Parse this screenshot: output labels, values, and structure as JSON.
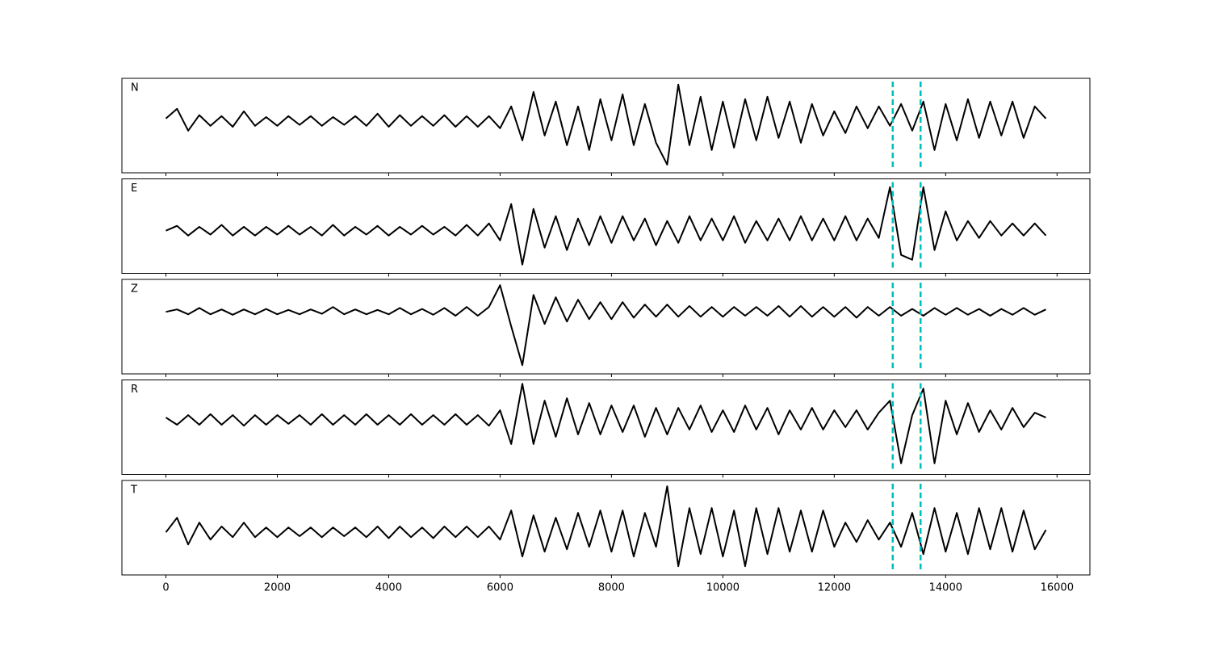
{
  "chart_data": {
    "type": "line",
    "x": [
      0,
      200,
      400,
      600,
      800,
      1000,
      1200,
      1400,
      1600,
      1800,
      2000,
      2200,
      2400,
      2600,
      2800,
      3000,
      3200,
      3400,
      3600,
      3800,
      4000,
      4200,
      4400,
      4600,
      4800,
      5000,
      5200,
      5400,
      5600,
      5800,
      6000,
      6200,
      6400,
      6600,
      6800,
      7000,
      7200,
      7400,
      7600,
      7800,
      8000,
      8200,
      8400,
      8600,
      8800,
      9000,
      9200,
      9400,
      9600,
      9800,
      10000,
      10200,
      10400,
      10600,
      10800,
      11000,
      11200,
      11400,
      11600,
      11800,
      12000,
      12200,
      12400,
      12600,
      12800,
      13000,
      13200,
      13400,
      13600,
      13800,
      14000,
      14200,
      14400,
      14600,
      14800,
      15000,
      15200,
      15400,
      15600,
      15800
    ],
    "xlim": [
      -790,
      16590
    ],
    "xticks": [
      0,
      2000,
      4000,
      6000,
      8000,
      10000,
      12000,
      14000,
      16000
    ],
    "vlines": [
      13050,
      13550
    ],
    "vline_color": "#00bfbf",
    "series": [
      {
        "name": "N",
        "color": "#000000",
        "ylim": [
          -1.07,
          0.88
        ],
        "values": [
          0.05,
          0.25,
          -0.2,
          0.12,
          -0.1,
          0.1,
          -0.12,
          0.2,
          -0.1,
          0.08,
          -0.1,
          0.1,
          -0.08,
          0.1,
          -0.1,
          0.08,
          -0.08,
          0.1,
          -0.1,
          0.15,
          -0.12,
          0.12,
          -0.1,
          0.1,
          -0.1,
          0.12,
          -0.12,
          0.1,
          -0.12,
          0.1,
          -0.15,
          0.3,
          -0.4,
          0.6,
          -0.3,
          0.4,
          -0.5,
          0.3,
          -0.6,
          0.45,
          -0.4,
          0.55,
          -0.5,
          0.35,
          -0.45,
          -0.9,
          0.75,
          -0.5,
          0.5,
          -0.6,
          0.4,
          -0.55,
          0.45,
          -0.4,
          0.5,
          -0.35,
          0.4,
          -0.45,
          0.35,
          -0.3,
          0.2,
          -0.25,
          0.3,
          -0.15,
          0.3,
          -0.1,
          0.35,
          -0.2,
          0.4,
          -0.6,
          0.35,
          -0.4,
          0.45,
          -0.35,
          0.4,
          -0.3,
          0.4,
          -0.35,
          0.3,
          0.05
        ]
      },
      {
        "name": "E",
        "color": "#000000",
        "ylim": [
          -0.88,
          1.07
        ],
        "values": [
          0.0,
          0.1,
          -0.1,
          0.08,
          -0.08,
          0.12,
          -0.1,
          0.08,
          -0.1,
          0.08,
          -0.08,
          0.1,
          -0.08,
          0.08,
          -0.1,
          0.12,
          -0.1,
          0.08,
          -0.08,
          0.1,
          -0.1,
          0.08,
          -0.08,
          0.1,
          -0.08,
          0.08,
          -0.1,
          0.12,
          -0.1,
          0.15,
          -0.2,
          0.55,
          -0.7,
          0.45,
          -0.35,
          0.3,
          -0.4,
          0.25,
          -0.3,
          0.3,
          -0.25,
          0.3,
          -0.2,
          0.25,
          -0.3,
          0.2,
          -0.25,
          0.3,
          -0.2,
          0.25,
          -0.2,
          0.3,
          -0.25,
          0.2,
          -0.2,
          0.25,
          -0.2,
          0.3,
          -0.2,
          0.25,
          -0.2,
          0.3,
          -0.2,
          0.25,
          -0.15,
          0.9,
          -0.5,
          -0.6,
          0.9,
          -0.4,
          0.4,
          -0.2,
          0.2,
          -0.15,
          0.2,
          -0.1,
          0.15,
          -0.1,
          0.15,
          -0.1
        ]
      },
      {
        "name": "Z",
        "color": "#000000",
        "ylim": [
          -1.28,
          0.67
        ],
        "values": [
          0.0,
          0.05,
          -0.05,
          0.08,
          -0.05,
          0.05,
          -0.06,
          0.05,
          -0.05,
          0.06,
          -0.05,
          0.04,
          -0.05,
          0.05,
          -0.04,
          0.1,
          -0.05,
          0.05,
          -0.05,
          0.04,
          -0.05,
          0.08,
          -0.05,
          0.06,
          -0.06,
          0.08,
          -0.08,
          0.1,
          -0.08,
          0.1,
          0.55,
          -0.3,
          -1.1,
          0.35,
          -0.25,
          0.3,
          -0.2,
          0.25,
          -0.15,
          0.2,
          -0.15,
          0.2,
          -0.12,
          0.15,
          -0.1,
          0.15,
          -0.1,
          0.12,
          -0.1,
          0.1,
          -0.1,
          0.1,
          -0.08,
          0.1,
          -0.08,
          0.12,
          -0.1,
          0.12,
          -0.1,
          0.1,
          -0.1,
          0.1,
          -0.12,
          0.1,
          -0.08,
          0.1,
          -0.08,
          0.06,
          -0.08,
          0.08,
          -0.06,
          0.08,
          -0.06,
          0.06,
          -0.08,
          0.06,
          -0.06,
          0.08,
          -0.06,
          0.05
        ]
      },
      {
        "name": "R",
        "color": "#000000",
        "ylim": [
          -1.13,
          0.83
        ],
        "values": [
          0.05,
          -0.1,
          0.1,
          -0.1,
          0.12,
          -0.1,
          0.1,
          -0.12,
          0.1,
          -0.1,
          0.1,
          -0.08,
          0.1,
          -0.1,
          0.12,
          -0.1,
          0.1,
          -0.1,
          0.12,
          -0.1,
          0.1,
          -0.1,
          0.12,
          -0.1,
          0.1,
          -0.1,
          0.12,
          -0.1,
          0.1,
          -0.12,
          0.2,
          -0.5,
          0.75,
          -0.5,
          0.4,
          -0.35,
          0.45,
          -0.3,
          0.35,
          -0.3,
          0.3,
          -0.25,
          0.3,
          -0.35,
          0.25,
          -0.3,
          0.25,
          -0.2,
          0.3,
          -0.25,
          0.2,
          -0.25,
          0.3,
          -0.2,
          0.25,
          -0.3,
          0.2,
          -0.2,
          0.25,
          -0.2,
          0.2,
          -0.15,
          0.2,
          -0.2,
          0.15,
          0.4,
          -0.9,
          0.1,
          0.65,
          -0.9,
          0.4,
          -0.3,
          0.35,
          -0.25,
          0.2,
          -0.2,
          0.25,
          -0.15,
          0.15,
          0.05
        ]
      },
      {
        "name": "T",
        "color": "#000000",
        "ylim": [
          -0.88,
          1.07
        ],
        "values": [
          0.0,
          0.3,
          -0.25,
          0.2,
          -0.15,
          0.12,
          -0.1,
          0.2,
          -0.1,
          0.1,
          -0.1,
          0.1,
          -0.08,
          0.1,
          -0.1,
          0.1,
          -0.08,
          0.1,
          -0.1,
          0.12,
          -0.12,
          0.12,
          -0.1,
          0.1,
          -0.12,
          0.12,
          -0.1,
          0.12,
          -0.1,
          0.12,
          -0.15,
          0.45,
          -0.5,
          0.35,
          -0.4,
          0.3,
          -0.35,
          0.4,
          -0.3,
          0.45,
          -0.4,
          0.45,
          -0.5,
          0.4,
          -0.3,
          0.95,
          -0.7,
          0.5,
          -0.45,
          0.5,
          -0.5,
          0.45,
          -0.7,
          0.5,
          -0.45,
          0.5,
          -0.4,
          0.45,
          -0.4,
          0.45,
          -0.3,
          0.2,
          -0.2,
          0.25,
          -0.15,
          0.2,
          -0.3,
          0.4,
          -0.45,
          0.5,
          -0.4,
          0.4,
          -0.45,
          0.5,
          -0.35,
          0.5,
          -0.4,
          0.45,
          -0.35,
          0.05
        ]
      }
    ]
  }
}
